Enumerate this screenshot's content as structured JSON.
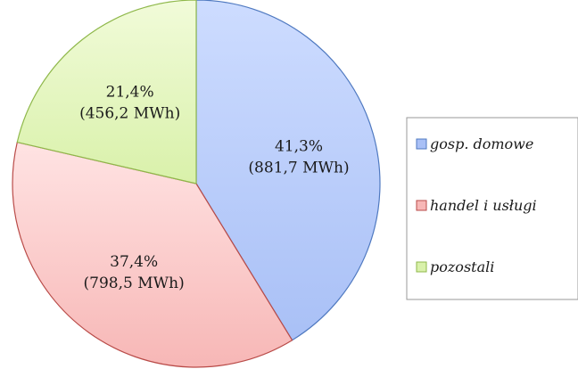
{
  "chart_data": {
    "type": "pie",
    "slices": [
      {
        "name": "gosp. domowe",
        "value": 41.3,
        "percent_label": "41,3%",
        "value_label": "(881,7 MWh)",
        "color_top": "#cddcff",
        "color_bottom": "#a9c0f6",
        "stroke": "#4f79c0"
      },
      {
        "name": "handel i usługi",
        "value": 37.4,
        "percent_label": "37,4%",
        "value_label": "(798,5 MWh)",
        "color_top": "#ffe3e3",
        "color_bottom": "#f7b7b6",
        "stroke": "#b94b48"
      },
      {
        "name": "pozostali",
        "value": 21.4,
        "percent_label": "21,4%",
        "value_label": "(456,2 MWh)",
        "color_top": "#f1fbd9",
        "color_bottom": "#d9f1aa",
        "stroke": "#8fb84b"
      }
    ],
    "start_angle": "12 o'clock",
    "direction": "clockwise",
    "legend_position": "right"
  }
}
